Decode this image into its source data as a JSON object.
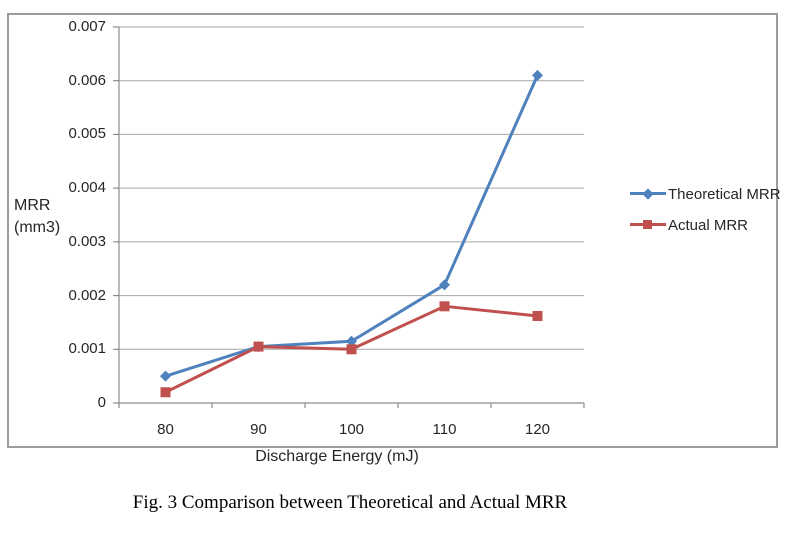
{
  "caption": "Fig. 3 Comparison between Theoretical and Actual MRR",
  "chart_data": {
    "type": "line",
    "title": "",
    "x": [
      80,
      90,
      100,
      110,
      120
    ],
    "xlabel": "Discharge Energy (mJ)",
    "ylabel": "MRR (mm3)",
    "ylabel_lines": [
      "MRR",
      "(mm3)"
    ],
    "ylim": [
      0,
      0.007
    ],
    "ytick_interval": 0.001,
    "ytick_labels": [
      "0",
      "0.001",
      "0.002",
      "0.003",
      "0.004",
      "0.005",
      "0.006",
      "0.007"
    ],
    "grid": "horizontal",
    "legend_position": "right",
    "series": [
      {
        "name": "Theoretical MRR",
        "marker": "diamond",
        "color": "#4f81bd",
        "values": [
          0.0005,
          0.00105,
          0.00115,
          0.0022,
          0.0061
        ]
      },
      {
        "name": "Actual MRR",
        "marker": "square",
        "color": "#c0504d",
        "values": [
          0.0002,
          0.00105,
          0.001,
          0.0018,
          0.00162
        ]
      }
    ],
    "colors": {
      "gridline": "#a6a6a6",
      "axis": "#8c8c8c",
      "frame_border": "#9c9c9c",
      "text": "#262626"
    }
  }
}
